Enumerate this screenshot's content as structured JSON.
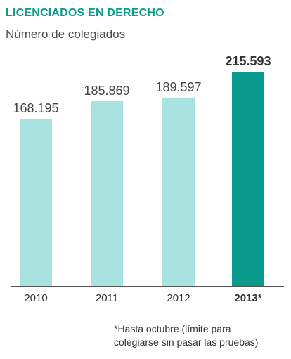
{
  "title": "LICENCIADOS EN DERECHO",
  "subtitle": "Número de colegiados",
  "footnote": {
    "line1": "*Hasta octubre (límite para",
    "line2": "colegiarse sin pasar las pruebas)"
  },
  "colors": {
    "title": "#0b9b8e",
    "bar": "#a8e3e0",
    "bar_highlight": "#0b9b8e",
    "axis": "#555555"
  },
  "chart_data": {
    "type": "bar",
    "title": "LICENCIADOS EN DERECHO",
    "subtitle": "Número de colegiados",
    "xlabel": "",
    "ylabel": "",
    "categories": [
      "2010",
      "2011",
      "2012",
      "2013*"
    ],
    "values": [
      168195,
      185869,
      189597,
      215593
    ],
    "value_labels": [
      "168.195",
      "185.869",
      "189.597",
      "215.593"
    ],
    "highlight": "2013*",
    "ylim": [
      0,
      215593
    ],
    "grid": false,
    "legend": "none"
  }
}
